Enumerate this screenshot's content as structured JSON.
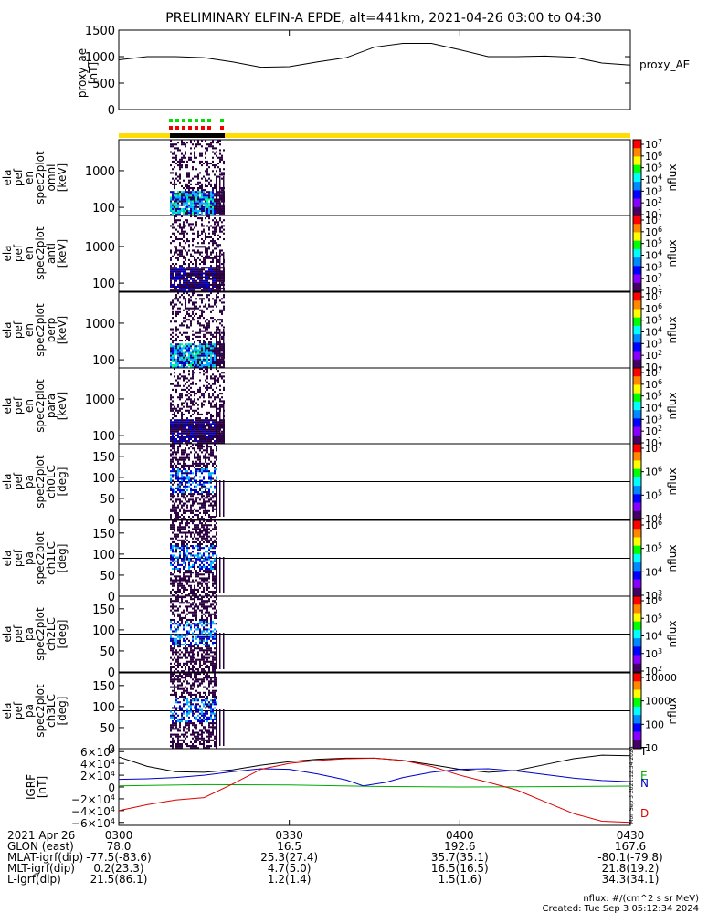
{
  "title": "PRELIMINARY ELFIN-A EPDE, alt=441km, 2021-04-26 03:00 to 04:30",
  "chart_data": [
    {
      "type": "line",
      "panel": "proxy_ae",
      "ylabel": "proxy_ae\n[nT]",
      "ylim": [
        0,
        1500
      ],
      "yticks": [
        "1500",
        "1000",
        "500",
        "0"
      ],
      "legend": "proxy_AE",
      "series": [
        {
          "name": "proxy_AE",
          "color": "#000000",
          "x": [
            0,
            5,
            10,
            15,
            20,
            25,
            30,
            35,
            40,
            45,
            50,
            55,
            60,
            65,
            70,
            75,
            80,
            85,
            90
          ],
          "values": [
            940,
            1000,
            1000,
            980,
            900,
            800,
            810,
            900,
            980,
            1180,
            1250,
            1250,
            1130,
            1000,
            1000,
            1010,
            990,
            880,
            840
          ]
        }
      ]
    },
    {
      "type": "heatmap",
      "panel": "en omni",
      "ylabel": "ela\npef\nen\nspec2plot\nomni\n[keV]",
      "yscale": "log",
      "ylim": [
        60,
        7000
      ],
      "yticks": [
        "1000",
        "100"
      ],
      "colorbar": {
        "label": "nflux",
        "ticks": [
          "10^7",
          "10^6",
          "10^5",
          "10^4",
          "10^3",
          "10^2",
          "10^1"
        ]
      }
    },
    {
      "type": "heatmap",
      "panel": "en anti",
      "ylabel": "ela\npef\nen\nspec2plot\nanti\n[keV]",
      "yscale": "log",
      "ylim": [
        60,
        7000
      ],
      "yticks": [
        "1000",
        "100"
      ],
      "colorbar": {
        "label": "nflux",
        "ticks": [
          "10^7",
          "10^6",
          "10^5",
          "10^4",
          "10^3",
          "10^2",
          "10^1"
        ]
      }
    },
    {
      "type": "heatmap",
      "panel": "en perp",
      "ylabel": "ela\npef\nen\nspec2plot\nperp\n[keV]",
      "yscale": "log",
      "ylim": [
        60,
        7000
      ],
      "yticks": [
        "1000",
        "100"
      ],
      "colorbar": {
        "label": "nflux",
        "ticks": [
          "10^7",
          "10^6",
          "10^5",
          "10^4",
          "10^3",
          "10^2",
          "10^1"
        ]
      }
    },
    {
      "type": "heatmap",
      "panel": "en para",
      "ylabel": "ela\npef\nen\nspec2plot\npara\n[keV]",
      "yscale": "log",
      "ylim": [
        60,
        7000
      ],
      "yticks": [
        "1000",
        "100"
      ],
      "colorbar": {
        "label": "nflux",
        "ticks": [
          "10^7",
          "10^6",
          "10^5",
          "10^4",
          "10^3",
          "10^2",
          "10^1"
        ]
      }
    },
    {
      "type": "heatmap",
      "panel": "pa ch0LC",
      "ylabel": "ela\npef\npa\nspec2plot\nch0LC\n[deg]",
      "ylim": [
        0,
        180
      ],
      "yticks": [
        "150",
        "100",
        "50",
        "0"
      ],
      "colorbar": {
        "label": "nflux",
        "ticks": [
          "10^7",
          "10^6",
          "10^5",
          "10^4"
        ]
      }
    },
    {
      "type": "heatmap",
      "panel": "pa ch1LC",
      "ylabel": "ela\npef\npa\nspec2plot\nch1LC\n[deg]",
      "ylim": [
        0,
        180
      ],
      "yticks": [
        "150",
        "100",
        "50",
        "0"
      ],
      "colorbar": {
        "label": "nflux",
        "ticks": [
          "10^6",
          "10^5",
          "10^4",
          "10^3"
        ]
      }
    },
    {
      "type": "heatmap",
      "panel": "pa ch2LC",
      "ylabel": "ela\npef\npa\nspec2plot\nch2LC\n[deg]",
      "ylim": [
        0,
        180
      ],
      "yticks": [
        "150",
        "100",
        "50",
        "0"
      ],
      "colorbar": {
        "label": "nflux",
        "ticks": [
          "10^6",
          "10^5",
          "10^4",
          "10^3",
          "10^2"
        ]
      }
    },
    {
      "type": "heatmap",
      "panel": "pa ch3LC",
      "ylabel": "ela\npef\npa\nspec2plot\nch3LC\n[deg]",
      "ylim": [
        0,
        180
      ],
      "yticks": [
        "150",
        "100",
        "50",
        "0"
      ],
      "colorbar": {
        "label": "nflux",
        "ticks": [
          "10000",
          "1000",
          "100",
          "10"
        ]
      }
    },
    {
      "type": "line",
      "panel": "IGRF",
      "ylabel": "IGRF\n[nT]",
      "ylim": [
        -65000,
        65000
      ],
      "yticks": [
        "6×10^4",
        "4×10^4",
        "2×10^4",
        "0",
        "−2×10^4",
        "−4×10^4",
        "−6×10^4"
      ],
      "series": [
        {
          "name": "T",
          "color": "#000000",
          "x": [
            0,
            5,
            10,
            15,
            20,
            25,
            30,
            35,
            40,
            45,
            50,
            55,
            60,
            65,
            70,
            75,
            80,
            85,
            90
          ],
          "values": [
            51000,
            35000,
            26000,
            25000,
            29000,
            37000,
            43000,
            47000,
            49000,
            49000,
            45000,
            38000,
            30000,
            25000,
            28000,
            38000,
            48000,
            54000,
            53000
          ]
        },
        {
          "name": "E",
          "color": "#00aa00",
          "x": [
            0,
            15,
            30,
            45,
            60,
            75,
            90
          ],
          "values": [
            2000,
            4000,
            3500,
            1000,
            0,
            500,
            1500
          ]
        },
        {
          "name": "N",
          "color": "#0000cc",
          "x": [
            0,
            5,
            10,
            15,
            20,
            25,
            30,
            35,
            40,
            43,
            47,
            50,
            55,
            60,
            65,
            70,
            75,
            80,
            85,
            90
          ],
          "values": [
            13000,
            14000,
            16000,
            20000,
            26000,
            31000,
            30000,
            22000,
            12000,
            2000,
            8000,
            16000,
            25000,
            30000,
            31000,
            27000,
            21000,
            15000,
            11000,
            9000
          ]
        },
        {
          "name": "D",
          "color": "#dd0000",
          "x": [
            0,
            5,
            10,
            15,
            20,
            25,
            30,
            35,
            40,
            45,
            50,
            55,
            60,
            65,
            70,
            75,
            80,
            85,
            90
          ],
          "values": [
            -40000,
            -30000,
            -22000,
            -18000,
            5000,
            30000,
            40000,
            45000,
            48000,
            49000,
            45000,
            35000,
            20000,
            8000,
            -5000,
            -25000,
            -45000,
            -58000,
            -60000
          ]
        }
      ]
    }
  ],
  "flux_strip": {
    "colors": [
      "#000000",
      "#2a0040",
      "#0000cc",
      "#00b0ff",
      "#00ff88",
      "#ffff00",
      "#ff8800"
    ]
  },
  "colorbar": {
    "top_label": "10^7",
    "bottom_label": "10",
    "scale_colors": [
      "#ff0000",
      "#ff8800",
      "#ffff00",
      "#00ff00",
      "#00ffff",
      "#0088ff",
      "#0000ff",
      "#8800ff",
      "#440066"
    ]
  },
  "igrf_labels": {
    "T": "T",
    "E": "E",
    "N": "N",
    "D": "D"
  },
  "side_stamp": "Mon Sep  3 2021:12:34 2024",
  "footer": {
    "rows": [
      {
        "label": "2021 Apr 26",
        "values": [
          "0300",
          "0330",
          "0400",
          "0430"
        ]
      },
      {
        "label": "GLON (east)",
        "values": [
          "78.0",
          "16.5",
          "192.6",
          "167.6"
        ]
      },
      {
        "label": "MLAT-igrf(dip)",
        "values": [
          "-77.5(-83.6)",
          "25.3(27.4)",
          "35.7(35.1)",
          "-80.1(-79.8)"
        ]
      },
      {
        "label": "MLT-igrf(dip)",
        "values": [
          "0.2(23.3)",
          "4.7(5.0)",
          "16.5(16.5)",
          "21.8(19.2)"
        ]
      },
      {
        "label": "L-igrf(dip)",
        "values": [
          "21.5(86.1)",
          "1.2(1.4)",
          "1.5(1.6)",
          "34.3(34.1)"
        ]
      }
    ],
    "units_note": "nflux: #/(cm^2 s sr MeV)",
    "created": "Created: Tue Sep  3 05:12:34 2024"
  }
}
